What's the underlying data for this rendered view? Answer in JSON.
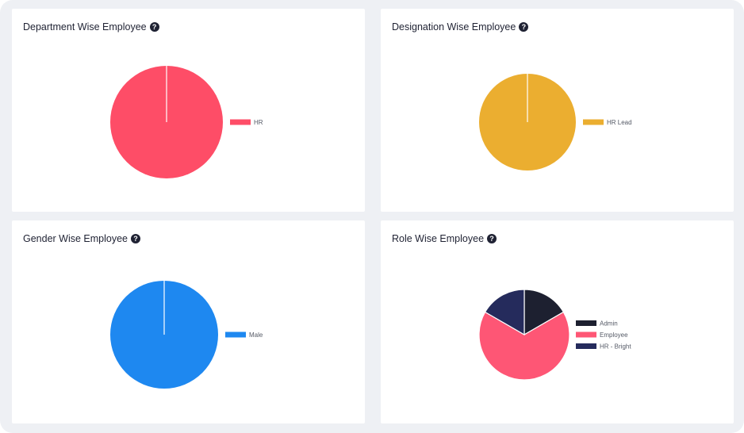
{
  "cards": [
    {
      "title": "Department Wise Employee",
      "help_icon": "question-circle-icon",
      "chart_data": {
        "type": "pie",
        "categories": [
          "HR"
        ],
        "values": [
          1
        ],
        "colors": [
          "#fe4d67"
        ],
        "legend_position": "right"
      }
    },
    {
      "title": "Designation Wise Employee",
      "help_icon": "question-circle-icon",
      "chart_data": {
        "type": "pie",
        "categories": [
          "HR Lead"
        ],
        "values": [
          1
        ],
        "colors": [
          "#ebae30"
        ],
        "legend_position": "right"
      }
    },
    {
      "title": "Gender Wise Employee",
      "help_icon": "question-circle-icon",
      "chart_data": {
        "type": "pie",
        "categories": [
          "Male"
        ],
        "values": [
          1
        ],
        "colors": [
          "#1e88f0"
        ],
        "legend_position": "right"
      }
    },
    {
      "title": "Role Wise Employee",
      "help_icon": "question-circle-icon",
      "chart_data": {
        "type": "pie",
        "categories": [
          "Admin",
          "Employee",
          "HR - Bright"
        ],
        "values": [
          1,
          4,
          1
        ],
        "colors": [
          "#1d2030",
          "#fe5675",
          "#252b5c"
        ],
        "legend_position": "right"
      }
    }
  ]
}
